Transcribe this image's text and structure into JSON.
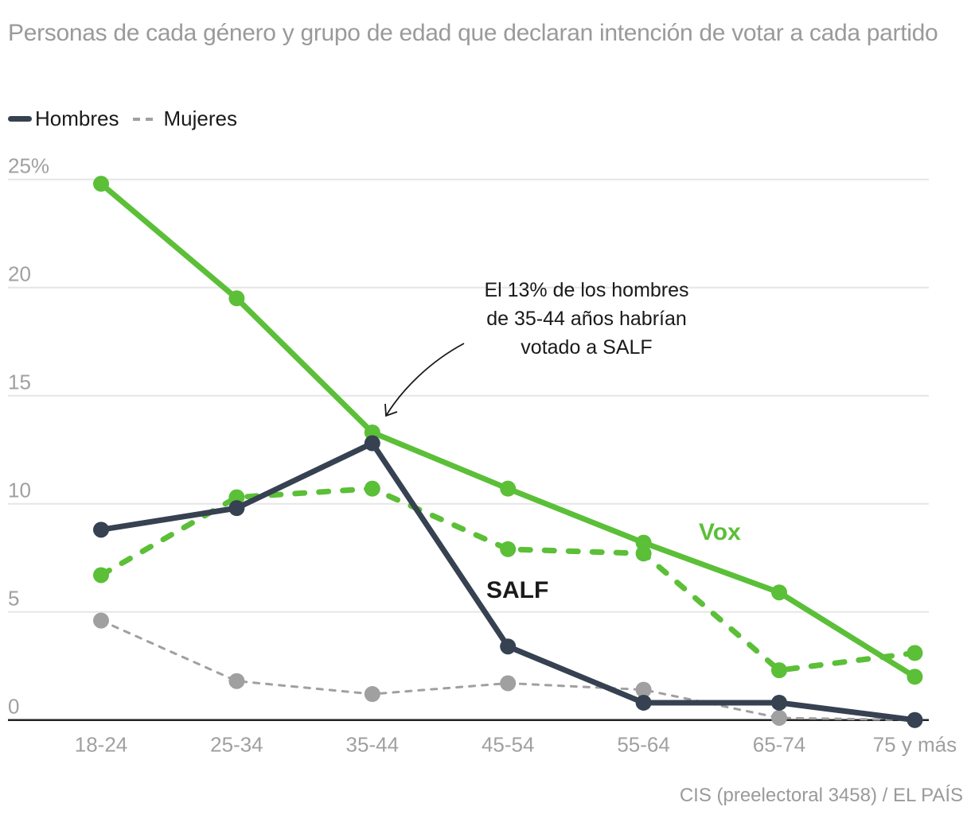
{
  "title": "Personas de cada género y grupo de edad que declaran intención de votar a cada partido",
  "legend": [
    {
      "label": "Hombres",
      "style": "solid"
    },
    {
      "label": "Mujeres",
      "style": "dashed"
    }
  ],
  "annotation": {
    "lines": [
      "El 13% de los hombres",
      "de 35-44 años habrían",
      "votado a SALF"
    ]
  },
  "series_labels": {
    "vox": "Vox",
    "salf": "SALF"
  },
  "colors": {
    "vox": "#5bbf38",
    "salf_men": "#364151",
    "salf_women": "#a0a0a0",
    "grid": "#e6e6e6",
    "axis": "#222222",
    "tick_text": "#a0a0a0"
  },
  "source": "CIS (preelectoral 3458) / EL PAÍS",
  "chart_data": {
    "type": "line",
    "title": "Personas de cada género y grupo de edad que declaran intención de votar a cada partido",
    "xlabel": "",
    "ylabel": "",
    "categories": [
      "18-24",
      "25-34",
      "35-44",
      "45-54",
      "55-64",
      "65-74",
      "75 y más"
    ],
    "ylim": [
      0,
      25
    ],
    "yticks": [
      0,
      5,
      10,
      15,
      20,
      25
    ],
    "ytick_labels": [
      "0",
      "5",
      "10",
      "15",
      "20",
      "25%"
    ],
    "grid": true,
    "legend_position": "top-left",
    "series": [
      {
        "name": "Vox - Hombres",
        "party": "Vox",
        "gender": "Hombres",
        "style": "solid",
        "color": "#5bbf38",
        "values": [
          24.8,
          19.5,
          13.3,
          10.7,
          8.2,
          5.9,
          2.0
        ]
      },
      {
        "name": "Vox - Mujeres",
        "party": "Vox",
        "gender": "Mujeres",
        "style": "dashed",
        "color": "#5bbf38",
        "values": [
          6.7,
          10.3,
          10.7,
          7.9,
          7.7,
          2.3,
          3.1
        ]
      },
      {
        "name": "SALF - Mujeres",
        "party": "SALF",
        "gender": "Mujeres",
        "style": "dashed",
        "color": "#a0a0a0",
        "values": [
          4.6,
          1.8,
          1.2,
          1.7,
          1.4,
          0.1,
          0.0
        ]
      },
      {
        "name": "SALF - Hombres",
        "party": "SALF",
        "gender": "Hombres",
        "style": "solid",
        "color": "#364151",
        "values": [
          8.8,
          9.8,
          12.8,
          3.4,
          0.8,
          0.8,
          0.0
        ]
      }
    ],
    "annotations": [
      {
        "text": "El 13% de los hombres de 35-44 años habrían votado a SALF",
        "points_to": {
          "category": "35-44",
          "series": "SALF - Hombres",
          "value": 13
        }
      }
    ]
  }
}
